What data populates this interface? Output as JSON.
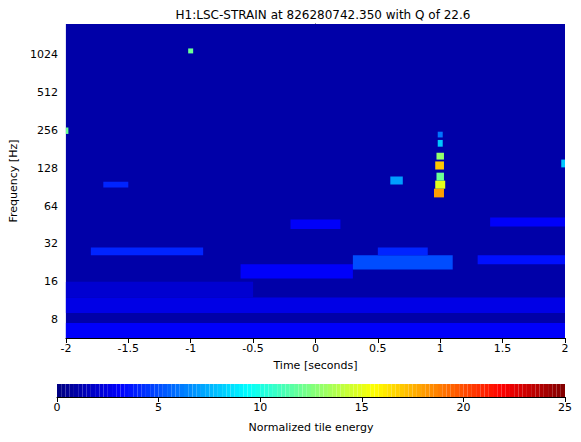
{
  "chart_data": {
    "type": "heatmap",
    "title": "H1:LSC-STRAIN at 826280742.350 with Q of 22.6",
    "x_label": "Time [seconds]",
    "y_label": "Frequency [Hz]",
    "xlim": [
      -2,
      2
    ],
    "xticks": [
      -2,
      -1.5,
      -1,
      -0.5,
      0,
      0.5,
      1,
      1.5,
      2
    ],
    "ylim": [
      5.7,
      1800
    ],
    "yticks": [
      8,
      16,
      32,
      64,
      128,
      256,
      512,
      1024
    ],
    "log": "y",
    "grid": false,
    "cells": [
      [
        -2,
        2,
        5.7,
        1800,
        1
      ],
      [
        -2,
        2,
        5.7,
        7.5,
        3
      ],
      [
        -2,
        2,
        9,
        12,
        2.5
      ],
      [
        -2,
        -0.5,
        12,
        16,
        2
      ],
      [
        -1.8,
        -0.9,
        26,
        30,
        4
      ],
      [
        -0.6,
        0.3,
        17,
        22,
        3
      ],
      [
        0.3,
        1.1,
        20,
        26,
        5
      ],
      [
        0.5,
        0.9,
        26,
        30,
        4
      ],
      [
        1.3,
        2,
        22,
        26,
        3.5
      ],
      [
        -0.2,
        0.2,
        42,
        50,
        3
      ],
      [
        1.4,
        2,
        44,
        52,
        3
      ],
      [
        -1.7,
        -1.5,
        90,
        100,
        4
      ],
      [
        0.6,
        0.7,
        95,
        110,
        7
      ],
      [
        0.95,
        1.03,
        75,
        88,
        18
      ],
      [
        0.96,
        1.04,
        88,
        102,
        15
      ],
      [
        0.97,
        1.03,
        102,
        118,
        12
      ],
      [
        0.96,
        1.03,
        125,
        145,
        17
      ],
      [
        0.97,
        1.03,
        150,
        170,
        13
      ],
      [
        0.98,
        1.02,
        190,
        215,
        8
      ],
      [
        0.98,
        1.02,
        225,
        250,
        6
      ],
      [
        -1.02,
        -0.98,
        1050,
        1150,
        12
      ],
      [
        -2,
        -1.98,
        240,
        270,
        12
      ],
      [
        1.97,
        2,
        130,
        150,
        8
      ]
    ],
    "colorbar": {
      "label": "Normalized tile energy",
      "range": [
        0,
        25
      ],
      "ticks": [
        0,
        5,
        10,
        15,
        20,
        25
      ]
    }
  }
}
